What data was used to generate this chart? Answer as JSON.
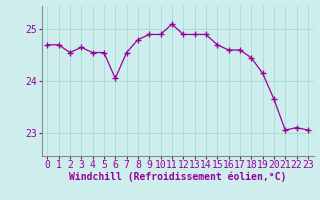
{
  "x": [
    0,
    1,
    2,
    3,
    4,
    5,
    6,
    7,
    8,
    9,
    10,
    11,
    12,
    13,
    14,
    15,
    16,
    17,
    18,
    19,
    20,
    21,
    22,
    23
  ],
  "y": [
    24.7,
    24.7,
    24.55,
    24.65,
    24.55,
    24.55,
    24.05,
    24.55,
    24.8,
    24.9,
    24.9,
    25.1,
    24.9,
    24.9,
    24.9,
    24.7,
    24.6,
    24.6,
    24.45,
    24.15,
    23.65,
    23.05,
    23.1,
    23.05
  ],
  "line_color": "#990099",
  "marker": "+",
  "marker_size": 4,
  "bg_color": "#cdeeed",
  "grid_color": "#aadddd",
  "axis_color": "#888888",
  "xlabel": "Windchill (Refroidissement éolien,°C)",
  "xlabel_fontsize": 7,
  "xtick_labels": [
    "0",
    "1",
    "2",
    "3",
    "4",
    "5",
    "6",
    "7",
    "8",
    "9",
    "10",
    "11",
    "12",
    "13",
    "14",
    "15",
    "16",
    "17",
    "18",
    "19",
    "20",
    "21",
    "22",
    "23"
  ],
  "ytick_labels": [
    "23",
    "24",
    "25"
  ],
  "yticks": [
    23,
    24,
    25
  ],
  "ylim": [
    22.55,
    25.45
  ],
  "xlim": [
    -0.5,
    23.5
  ],
  "tick_fontsize": 7,
  "linewidth": 0.9,
  "markeredgewidth": 1.0
}
